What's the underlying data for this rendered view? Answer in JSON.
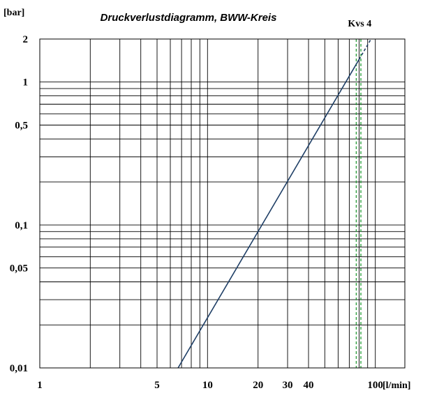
{
  "chart_data": {
    "type": "line",
    "title": "Druckverlustdiagramm, BWW-Kreis",
    "ylabel": "[bar]",
    "xlabel": "[l/min]",
    "x_scale": "log",
    "y_scale": "log",
    "xlim": [
      1,
      150
    ],
    "ylim": [
      0.01,
      2
    ],
    "x_ticks": [
      {
        "value": 1,
        "label": "1"
      },
      {
        "value": 5,
        "label": "5"
      },
      {
        "value": 10,
        "label": "10"
      },
      {
        "value": 20,
        "label": "20"
      },
      {
        "value": 30,
        "label": "30"
      },
      {
        "value": 40,
        "label": "40"
      },
      {
        "value": 100,
        "label": "100"
      }
    ],
    "y_ticks": [
      {
        "value": 2,
        "label": "2"
      },
      {
        "value": 1,
        "label": "1"
      },
      {
        "value": 0.5,
        "label": "0,5"
      },
      {
        "value": 0.1,
        "label": "0,1"
      },
      {
        "value": 0.05,
        "label": "0,05"
      },
      {
        "value": 0.01,
        "label": "0,01"
      }
    ],
    "x_grid": [
      2,
      3,
      4,
      5,
      6,
      7,
      8,
      9,
      10,
      20,
      30,
      40,
      50,
      60,
      70,
      80,
      90,
      100
    ],
    "y_grid": [
      0.02,
      0.03,
      0.04,
      0.05,
      0.06,
      0.07,
      0.08,
      0.09,
      0.1,
      0.2,
      0.3,
      0.4,
      0.5,
      0.6,
      0.7,
      0.8,
      0.9,
      1
    ],
    "series": [
      {
        "style": "solid",
        "color": "#1f3f66",
        "points": [
          [
            6.67,
            0.01
          ],
          [
            66.7,
            1.0
          ],
          [
            80.0,
            1.44
          ]
        ]
      },
      {
        "style": "dashed",
        "color": "#1f3f66",
        "points": [
          [
            80.0,
            1.44
          ],
          [
            94.3,
            2.0
          ]
        ]
      }
    ],
    "reference_lines": [
      {
        "axis": "x",
        "value": 77,
        "color": "#2e9e3e",
        "style": "dashed",
        "label": "Kvs 4"
      },
      {
        "axis": "x",
        "value": 82,
        "color": "#2e9e3e",
        "style": "dashed"
      }
    ],
    "grid": true,
    "legend": "none"
  }
}
